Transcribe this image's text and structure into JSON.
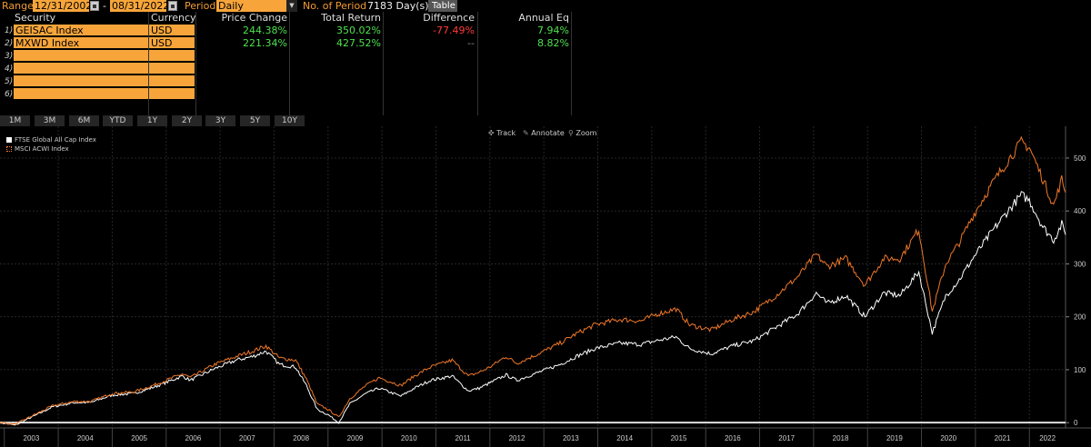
{
  "toolbar": {
    "range_label": "Range",
    "start_date": "12/31/2002",
    "date_separator": "-",
    "end_date": "08/31/2022",
    "period_label": "Period",
    "period_value": "Daily",
    "num_periods_label": "No. of Period",
    "num_periods_value": "7183 Day(s)",
    "table_button": "Table"
  },
  "table": {
    "headers": {
      "security": "Security",
      "currency": "Currency",
      "price_change": "Price Change",
      "total_return": "Total Return",
      "difference": "Difference",
      "annual_eq": "Annual Eq"
    },
    "rows": [
      {
        "num": "1)",
        "security": "GEISAC Index",
        "currency": "USD",
        "price_change": "244.38%",
        "total_return": "350.02%",
        "difference": "-77.49%",
        "annual_eq": "7.94%"
      },
      {
        "num": "2)",
        "security": "MXWD Index",
        "currency": "USD",
        "price_change": "221.34%",
        "total_return": "427.52%",
        "difference": "--",
        "annual_eq": "8.82%"
      },
      {
        "num": "3)",
        "security": "",
        "currency": "",
        "price_change": "",
        "total_return": "",
        "difference": "",
        "annual_eq": ""
      },
      {
        "num": "4)",
        "security": "",
        "currency": "",
        "price_change": "",
        "total_return": "",
        "difference": "",
        "annual_eq": ""
      },
      {
        "num": "5)",
        "security": "",
        "currency": "",
        "price_change": "",
        "total_return": "",
        "difference": "",
        "annual_eq": ""
      },
      {
        "num": "6)",
        "security": "",
        "currency": "",
        "price_change": "",
        "total_return": "",
        "difference": "",
        "annual_eq": ""
      }
    ],
    "colors": {
      "positive": "#4ee04e",
      "negative": "#ff3b3b",
      "neutral": "#888888",
      "cell_bg": "#f7a53a"
    }
  },
  "range_buttons": [
    "1M",
    "3M",
    "6M",
    "YTD",
    "1Y",
    "2Y",
    "3Y",
    "5Y",
    "10Y"
  ],
  "chart_tools": {
    "track": "Track",
    "annotate": "Annotate",
    "zoom": "Zoom"
  },
  "chart_data": {
    "type": "line",
    "title": "",
    "ylabel": "",
    "xlabel": "",
    "ylim": [
      -10,
      560
    ],
    "xlim": [
      2002.92,
      2022.67
    ],
    "yticks": [
      0,
      100,
      200,
      300,
      400,
      500
    ],
    "xticks": [
      "2003",
      "2004",
      "2005",
      "2006",
      "2007",
      "2008",
      "2009",
      "2010",
      "2011",
      "2012",
      "2013",
      "2014",
      "2015",
      "2016",
      "2017",
      "2018",
      "2019",
      "2020",
      "2021",
      "2022"
    ],
    "legend_position": "top-left",
    "zero_line": true,
    "series": [
      {
        "name": "FTSE Global All Cap Index",
        "color": "#ffffff",
        "points": [
          [
            2002.92,
            0
          ],
          [
            2003.2,
            -5
          ],
          [
            2003.5,
            10
          ],
          [
            2003.9,
            30
          ],
          [
            2004.3,
            38
          ],
          [
            2004.6,
            38
          ],
          [
            2005.0,
            52
          ],
          [
            2005.4,
            55
          ],
          [
            2005.8,
            68
          ],
          [
            2006.3,
            88
          ],
          [
            2006.45,
            80
          ],
          [
            2006.9,
            102
          ],
          [
            2007.3,
            118
          ],
          [
            2007.6,
            125
          ],
          [
            2007.85,
            135
          ],
          [
            2008.1,
            110
          ],
          [
            2008.4,
            105
          ],
          [
            2008.6,
            70
          ],
          [
            2008.8,
            25
          ],
          [
            2009.0,
            15
          ],
          [
            2009.2,
            0
          ],
          [
            2009.4,
            35
          ],
          [
            2009.7,
            55
          ],
          [
            2009.95,
            65
          ],
          [
            2010.35,
            50
          ],
          [
            2010.6,
            65
          ],
          [
            2010.9,
            80
          ],
          [
            2011.3,
            88
          ],
          [
            2011.6,
            60
          ],
          [
            2011.8,
            65
          ],
          [
            2012.0,
            75
          ],
          [
            2012.3,
            90
          ],
          [
            2012.5,
            80
          ],
          [
            2012.9,
            95
          ],
          [
            2013.3,
            110
          ],
          [
            2013.6,
            125
          ],
          [
            2013.95,
            140
          ],
          [
            2014.4,
            150
          ],
          [
            2014.8,
            148
          ],
          [
            2015.1,
            155
          ],
          [
            2015.45,
            162
          ],
          [
            2015.7,
            140
          ],
          [
            2016.1,
            130
          ],
          [
            2016.5,
            145
          ],
          [
            2016.9,
            155
          ],
          [
            2017.3,
            180
          ],
          [
            2017.7,
            205
          ],
          [
            2018.05,
            245
          ],
          [
            2018.25,
            225
          ],
          [
            2018.6,
            240
          ],
          [
            2018.95,
            200
          ],
          [
            2019.3,
            245
          ],
          [
            2019.6,
            240
          ],
          [
            2019.95,
            285
          ],
          [
            2020.2,
            170
          ],
          [
            2020.45,
            240
          ],
          [
            2020.7,
            270
          ],
          [
            2020.95,
            310
          ],
          [
            2021.3,
            360
          ],
          [
            2021.6,
            400
          ],
          [
            2021.85,
            430
          ],
          [
            2022.0,
            420
          ],
          [
            2022.25,
            370
          ],
          [
            2022.45,
            345
          ],
          [
            2022.6,
            375
          ],
          [
            2022.67,
            355
          ]
        ]
      },
      {
        "name": "MSCI ACWI Index",
        "color": "#f07828",
        "points": [
          [
            2002.92,
            0
          ],
          [
            2003.2,
            -3
          ],
          [
            2003.5,
            12
          ],
          [
            2003.9,
            32
          ],
          [
            2004.3,
            40
          ],
          [
            2004.6,
            40
          ],
          [
            2005.0,
            55
          ],
          [
            2005.4,
            58
          ],
          [
            2005.8,
            72
          ],
          [
            2006.3,
            92
          ],
          [
            2006.45,
            85
          ],
          [
            2006.9,
            110
          ],
          [
            2007.3,
            125
          ],
          [
            2007.6,
            135
          ],
          [
            2007.85,
            145
          ],
          [
            2008.1,
            122
          ],
          [
            2008.4,
            118
          ],
          [
            2008.6,
            82
          ],
          [
            2008.8,
            35
          ],
          [
            2009.0,
            25
          ],
          [
            2009.2,
            10
          ],
          [
            2009.4,
            45
          ],
          [
            2009.7,
            70
          ],
          [
            2009.95,
            85
          ],
          [
            2010.35,
            70
          ],
          [
            2010.6,
            88
          ],
          [
            2010.9,
            105
          ],
          [
            2011.3,
            118
          ],
          [
            2011.6,
            88
          ],
          [
            2011.8,
            95
          ],
          [
            2012.0,
            105
          ],
          [
            2012.3,
            125
          ],
          [
            2012.5,
            112
          ],
          [
            2012.9,
            130
          ],
          [
            2013.3,
            150
          ],
          [
            2013.6,
            168
          ],
          [
            2013.95,
            185
          ],
          [
            2014.4,
            195
          ],
          [
            2014.8,
            192
          ],
          [
            2015.1,
            205
          ],
          [
            2015.45,
            215
          ],
          [
            2015.7,
            185
          ],
          [
            2016.1,
            175
          ],
          [
            2016.5,
            195
          ],
          [
            2016.9,
            210
          ],
          [
            2017.3,
            240
          ],
          [
            2017.7,
            275
          ],
          [
            2018.05,
            318
          ],
          [
            2018.25,
            295
          ],
          [
            2018.6,
            310
          ],
          [
            2018.95,
            260
          ],
          [
            2019.3,
            310
          ],
          [
            2019.6,
            310
          ],
          [
            2019.95,
            365
          ],
          [
            2020.2,
            210
          ],
          [
            2020.45,
            300
          ],
          [
            2020.7,
            340
          ],
          [
            2020.95,
            390
          ],
          [
            2021.3,
            450
          ],
          [
            2021.6,
            495
          ],
          [
            2021.85,
            530
          ],
          [
            2022.0,
            520
          ],
          [
            2022.25,
            460
          ],
          [
            2022.45,
            410
          ],
          [
            2022.6,
            460
          ],
          [
            2022.67,
            435
          ]
        ]
      }
    ]
  }
}
